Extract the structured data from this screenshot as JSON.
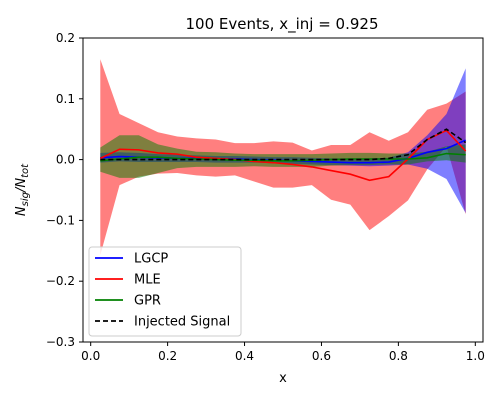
{
  "chart_data": {
    "type": "line",
    "title": "100 Events, x_inj = 0.925",
    "xlabel": "x",
    "ylabel": "N_sig/N_tot",
    "xlim": [
      -0.02,
      1.02
    ],
    "ylim": [
      -0.3,
      0.2
    ],
    "xticks": [
      0.0,
      0.2,
      0.4,
      0.6,
      0.8,
      1.0
    ],
    "xtick_labels": [
      "0.0",
      "0.2",
      "0.4",
      "0.6",
      "0.8",
      "1.0"
    ],
    "yticks": [
      -0.3,
      -0.2,
      -0.1,
      0.0,
      0.1,
      0.2
    ],
    "ytick_labels": [
      "−0.3",
      "−0.2",
      "−0.1",
      "0.0",
      "0.1",
      "0.2"
    ],
    "legend_position": "lower-left",
    "x": [
      0.025,
      0.075,
      0.125,
      0.175,
      0.225,
      0.275,
      0.325,
      0.375,
      0.425,
      0.475,
      0.525,
      0.575,
      0.625,
      0.675,
      0.725,
      0.775,
      0.825,
      0.875,
      0.925,
      0.975
    ],
    "series": [
      {
        "name": "LGCP",
        "color": "#0000ff",
        "style": "solid",
        "values": [
          0.003,
          0.005,
          0.004,
          0.003,
          0.002,
          0.002,
          0.001,
          0.001,
          0.0,
          -0.001,
          -0.002,
          -0.003,
          -0.004,
          -0.005,
          -0.005,
          -0.004,
          0.002,
          0.012,
          0.018,
          0.032
        ],
        "band_lower": [
          -0.005,
          -0.003,
          -0.004,
          -0.004,
          -0.004,
          -0.004,
          -0.005,
          -0.005,
          -0.005,
          -0.006,
          -0.007,
          -0.008,
          -0.009,
          -0.01,
          -0.011,
          -0.01,
          -0.008,
          -0.015,
          -0.032,
          -0.088
        ],
        "band_upper": [
          0.011,
          0.012,
          0.011,
          0.009,
          0.008,
          0.007,
          0.006,
          0.006,
          0.005,
          0.004,
          0.004,
          0.003,
          0.002,
          0.002,
          0.002,
          0.003,
          0.012,
          0.04,
          0.075,
          0.15
        ],
        "band_color": "#0000ff"
      },
      {
        "name": "MLE",
        "color": "#ff0000",
        "style": "solid",
        "values": [
          0.002,
          0.017,
          0.016,
          0.011,
          0.009,
          0.004,
          0.002,
          0.0,
          -0.003,
          -0.005,
          -0.008,
          -0.012,
          -0.018,
          -0.024,
          -0.034,
          -0.028,
          0.001,
          0.033,
          0.048,
          0.014
        ],
        "band_lower": [
          -0.157,
          -0.042,
          -0.028,
          -0.023,
          -0.022,
          -0.026,
          -0.028,
          -0.026,
          -0.036,
          -0.046,
          -0.046,
          -0.042,
          -0.066,
          -0.074,
          -0.116,
          -0.093,
          -0.067,
          -0.016,
          0.022,
          -0.09
        ],
        "band_upper": [
          0.165,
          0.075,
          0.06,
          0.045,
          0.038,
          0.035,
          0.033,
          0.027,
          0.027,
          0.03,
          0.028,
          0.015,
          0.024,
          0.024,
          0.045,
          0.031,
          0.045,
          0.082,
          0.092,
          0.112
        ],
        "band_color": "#ff0000"
      },
      {
        "name": "GPR",
        "color": "#008000",
        "style": "solid",
        "values": [
          -0.002,
          0.001,
          0.004,
          0.004,
          0.002,
          0.001,
          0.0,
          -0.001,
          -0.001,
          -0.002,
          -0.002,
          -0.001,
          0.0,
          0.001,
          0.001,
          0.001,
          0.001,
          0.003,
          0.01,
          0.008
        ],
        "band_lower": [
          -0.02,
          -0.03,
          -0.03,
          -0.022,
          -0.014,
          -0.012,
          -0.012,
          -0.012,
          -0.011,
          -0.012,
          -0.012,
          -0.012,
          -0.01,
          -0.009,
          -0.009,
          -0.008,
          -0.008,
          -0.003,
          -0.001,
          -0.005
        ],
        "band_upper": [
          0.02,
          0.04,
          0.04,
          0.025,
          0.018,
          0.013,
          0.012,
          0.01,
          0.009,
          0.009,
          0.009,
          0.009,
          0.01,
          0.011,
          0.011,
          0.01,
          0.01,
          0.013,
          0.022,
          0.025
        ],
        "band_color": "#008000"
      },
      {
        "name": "Injected Signal",
        "color": "#000000",
        "style": "dashed",
        "values": [
          0.0,
          0.0,
          0.0,
          0.0,
          0.0,
          0.0,
          0.0,
          0.0,
          0.0,
          0.0,
          0.0,
          0.0,
          0.0,
          0.0,
          0.0,
          0.002,
          0.008,
          0.033,
          0.05,
          0.028
        ]
      }
    ]
  }
}
